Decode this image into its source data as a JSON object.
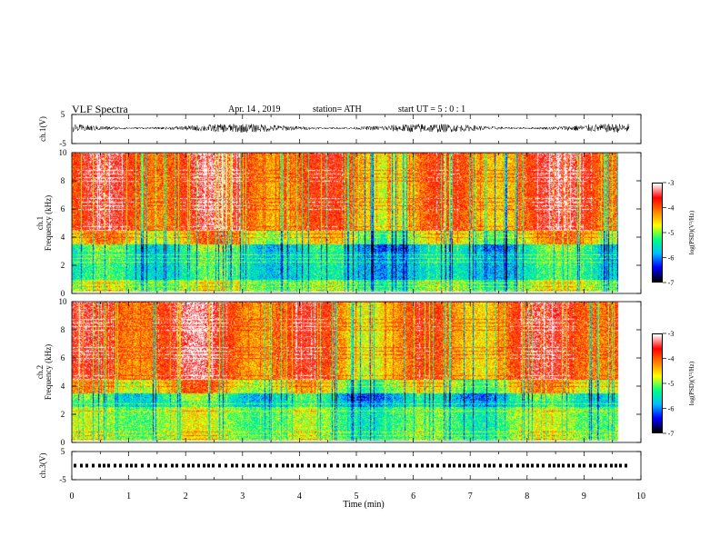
{
  "header": {
    "title": "VLF  Spectra",
    "date": "Apr. 14 , 2019",
    "station": "station= ATH",
    "start": "start  UT  =    5  : 0   : 1"
  },
  "chart_data": [
    {
      "type": "line",
      "name": "ch1-waveform",
      "ylabel": "ch.1(V)",
      "ylim": [
        -5,
        5
      ],
      "yticks": [
        "5",
        "-5"
      ],
      "xlim": [
        0,
        10
      ],
      "description_values": {
        "baseline_V": 0.3,
        "amplitude_V": 1.5
      }
    },
    {
      "type": "heatmap",
      "name": "ch1-spectrogram",
      "ylabel": "ch.1\nFrequency (kHz)",
      "ylim": [
        0,
        10
      ],
      "yticks": [
        "0",
        "2",
        "4",
        "6",
        "8",
        "10"
      ],
      "xlim": [
        0,
        10
      ],
      "data_end_min": 9.8,
      "colorbar": {
        "label": "log(PSD)(V²/Hz)",
        "range": [
          -7,
          -3
        ],
        "ticks": [
          "-3",
          "-4",
          "-5",
          "-6",
          "-7"
        ]
      }
    },
    {
      "type": "heatmap",
      "name": "ch2-spectrogram",
      "ylabel": "ch.2\nFrequency (kHz)",
      "ylim": [
        0,
        10
      ],
      "yticks": [
        "0",
        "2",
        "4",
        "6",
        "8",
        "10"
      ],
      "xlim": [
        0,
        10
      ],
      "data_end_min": 9.8,
      "colorbar": {
        "label": "log(PSD)(V²/Hz)",
        "range": [
          -7,
          -3
        ],
        "ticks": [
          "-3",
          "-4",
          "-5",
          "-6",
          "-7"
        ]
      }
    },
    {
      "type": "line",
      "name": "ch3-waveform",
      "ylabel": "ch.3(V)",
      "ylim": [
        -5,
        5
      ],
      "yticks": [
        "5",
        "-5"
      ],
      "xlim": [
        0,
        10
      ],
      "xticks": [
        "0",
        "1",
        "2",
        "3",
        "4",
        "5",
        "6",
        "7",
        "8",
        "9",
        "10"
      ],
      "xlabel": "Time  (min)",
      "description_values": {
        "level_V": 0
      }
    }
  ],
  "colors": {
    "colormap": [
      "#000000",
      "#0000ff",
      "#00bfff",
      "#00ff80",
      "#ffff00",
      "#ff8000",
      "#ff0000",
      "#ffffff"
    ],
    "line": "#000000"
  }
}
